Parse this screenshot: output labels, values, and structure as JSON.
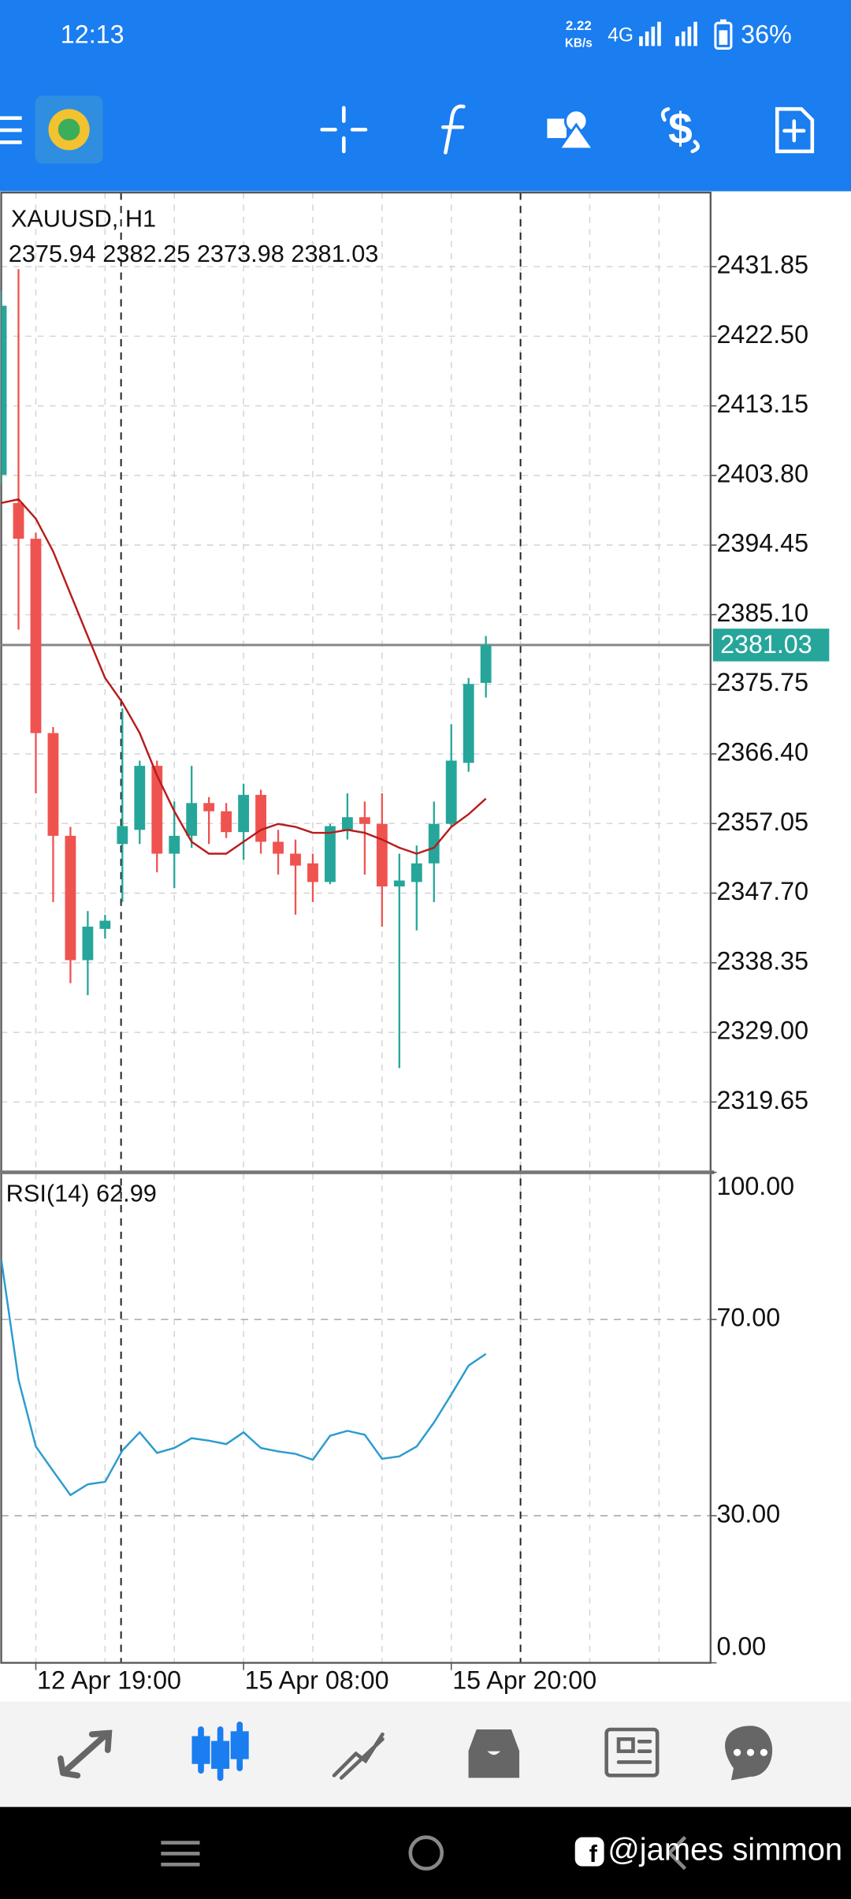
{
  "status_bar": {
    "time": "12:13",
    "net_speed": "2.22",
    "net_unit": "KB/s",
    "network": "4G",
    "battery": "36%"
  },
  "chart": {
    "type": "candlestick",
    "symbol": "XAUUSD, H1",
    "up_color": "#26a69a",
    "down_color": "#ef5350",
    "grid": true,
    "categories": [
      null,
      null,
      "12 Apr 19:00",
      null,
      null,
      null,
      null,
      null,
      null,
      null,
      null,
      null,
      null,
      null,
      "15 Apr 08:00",
      null,
      null,
      null,
      null,
      null,
      null,
      null,
      null,
      null,
      null,
      null,
      "15 Apr 20:00",
      null,
      null
    ],
    "candles": [
      {
        "open": 2403.9,
        "high": 2428.6,
        "low": 2402.6,
        "close": 2426.6
      },
      {
        "open": 2400.1,
        "high": 2431.5,
        "low": 2383.1,
        "close": 2395.3
      },
      {
        "open": 2395.3,
        "high": 2396.1,
        "low": 2361.1,
        "close": 2369.2
      },
      {
        "open": 2369.2,
        "high": 2370.0,
        "low": 2346.5,
        "close": 2355.4
      },
      {
        "open": 2355.4,
        "high": 2356.6,
        "low": 2335.6,
        "close": 2338.7
      },
      {
        "open": 2338.7,
        "high": 2345.3,
        "low": 2334.0,
        "close": 2343.2
      },
      {
        "open": 2342.9,
        "high": 2344.8,
        "low": 2341.6,
        "close": 2344.0
      },
      {
        "open": 2354.3,
        "high": 2372.5,
        "low": 2346.5,
        "close": 2356.7
      },
      {
        "open": 2356.2,
        "high": 2365.5,
        "low": 2354.3,
        "close": 2364.8
      },
      {
        "open": 2364.8,
        "high": 2365.5,
        "low": 2350.5,
        "close": 2353.0
      },
      {
        "open": 2353.0,
        "high": 2360.0,
        "low": 2348.4,
        "close": 2355.4
      },
      {
        "open": 2355.4,
        "high": 2364.8,
        "low": 2353.8,
        "close": 2359.8
      },
      {
        "open": 2359.8,
        "high": 2360.6,
        "low": 2354.3,
        "close": 2358.7
      },
      {
        "open": 2358.7,
        "high": 2359.8,
        "low": 2355.1,
        "close": 2355.9
      },
      {
        "open": 2355.9,
        "high": 2362.4,
        "low": 2352.2,
        "close": 2360.9
      },
      {
        "open": 2360.9,
        "high": 2361.6,
        "low": 2353.0,
        "close": 2354.6
      },
      {
        "open": 2354.6,
        "high": 2356.2,
        "low": 2350.2,
        "close": 2353.0
      },
      {
        "open": 2353.0,
        "high": 2354.9,
        "low": 2344.8,
        "close": 2351.4
      },
      {
        "open": 2351.7,
        "high": 2353.0,
        "low": 2346.5,
        "close": 2349.2
      },
      {
        "open": 2349.2,
        "high": 2357.0,
        "low": 2348.9,
        "close": 2356.7
      },
      {
        "open": 2356.2,
        "high": 2361.1,
        "low": 2354.9,
        "close": 2357.9
      },
      {
        "open": 2357.9,
        "high": 2360.0,
        "low": 2350.2,
        "close": 2357.0
      },
      {
        "open": 2357.0,
        "high": 2361.1,
        "low": 2343.2,
        "close": 2348.6
      },
      {
        "open": 2348.6,
        "high": 2353.0,
        "low": 2324.2,
        "close": 2349.4
      },
      {
        "open": 2349.2,
        "high": 2354.1,
        "low": 2342.7,
        "close": 2351.7
      },
      {
        "open": 2351.7,
        "high": 2360.0,
        "low": 2346.5,
        "close": 2357.0
      },
      {
        "open": 2357.0,
        "high": 2370.4,
        "low": 2356.6,
        "close": 2365.5
      },
      {
        "open": 2365.2,
        "high": 2376.6,
        "low": 2364.0,
        "close": 2375.8
      },
      {
        "open": 2375.94,
        "high": 2382.25,
        "low": 2373.98,
        "close": 2381.03
      }
    ],
    "ma": {
      "color": "#b71c1c",
      "values": [
        2400.1,
        2400.6,
        2398.0,
        2393.6,
        2387.9,
        2382.2,
        2376.6,
        2373.3,
        2369.2,
        2363.5,
        2358.7,
        2354.6,
        2353.0,
        2353.0,
        2354.6,
        2356.2,
        2357.0,
        2356.6,
        2355.8,
        2355.8,
        2356.2,
        2355.8,
        2354.9,
        2353.8,
        2353.0,
        2353.8,
        2356.6,
        2358.3,
        2360.4
      ]
    },
    "ylim": [
      2310.2,
      2441.8
    ],
    "yticks": [
      {
        "value": 2431.85,
        "label": "2431.85"
      },
      {
        "value": 2422.5,
        "label": "2422.50"
      },
      {
        "value": 2413.15,
        "label": "2413.15"
      },
      {
        "value": 2403.8,
        "label": "2403.80"
      },
      {
        "value": 2394.45,
        "label": "2394.45"
      },
      {
        "value": 2385.1,
        "label": "2385.10"
      },
      {
        "value": 2375.75,
        "label": "2375.75"
      },
      {
        "value": 2366.4,
        "label": "2366.40"
      },
      {
        "value": 2357.05,
        "label": "2357.05"
      },
      {
        "value": 2347.7,
        "label": "2347.70"
      },
      {
        "value": 2338.35,
        "label": "2338.35"
      },
      {
        "value": 2329.0,
        "label": "2329.00"
      },
      {
        "value": 2319.65,
        "label": "2319.65"
      }
    ]
  },
  "rsi": {
    "type": "line",
    "name": "RSI(14)",
    "color": "#2b9bd0",
    "values": [
      82.3,
      57.7,
      44.1,
      39.1,
      34.2,
      36.4,
      36.9,
      43.3,
      47.0,
      42.8,
      43.8,
      45.8,
      45.3,
      44.6,
      47.0,
      43.8,
      43.1,
      42.6,
      41.4,
      46.3,
      47.3,
      46.5,
      41.6,
      42.1,
      44.1,
      49.0,
      54.7,
      60.6,
      62.99
    ],
    "ylim": [
      0,
      100
    ],
    "yticks": [
      {
        "value": 100,
        "label": "100.00"
      },
      {
        "value": 70,
        "label": "70.00"
      },
      {
        "value": 30,
        "label": "30.00"
      },
      {
        "value": 0,
        "label": "0.00"
      }
    ]
  },
  "watermark": "@james simmon"
}
